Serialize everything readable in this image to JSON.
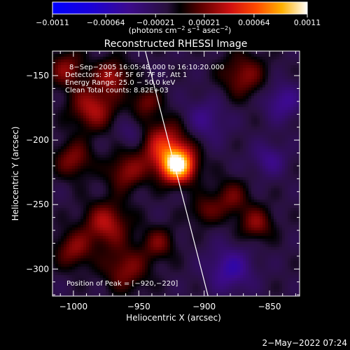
{
  "chart_data": {
    "type": "heatmap",
    "title": "Reconstructed RHESSI Image",
    "xlabel": "Heliocentric X (arcsec)",
    "ylabel": "Heliocentric Y (arcsec)",
    "xlim": [
      -1016,
      -827
    ],
    "ylim": [
      -321,
      -131
    ],
    "xticks": [
      -1000,
      -950,
      -900,
      -850
    ],
    "yticks": [
      -300,
      -250,
      -200,
      -150
    ],
    "xtick_labels": [
      "−1000",
      "−950",
      "−900",
      "−850"
    ],
    "ytick_labels": [
      "−300",
      "−250",
      "−200",
      "−150"
    ],
    "colorbar": {
      "min": -0.0011,
      "max": 0.0011,
      "ticks": [
        -0.0011,
        -0.00064,
        -0.00021,
        0.00021,
        0.00064,
        0.0011
      ],
      "tick_labels": [
        "−0.0011",
        "−0.00064",
        "−0.00021",
        "0.00021",
        "0.00064",
        "0.0011"
      ],
      "unit_label": "(photons cm",
      "unit_sup1": "−2",
      "unit_mid": " s",
      "unit_sup2": "−1",
      "unit_mid2": " asec",
      "unit_sup3": "−2",
      "unit_end": ")"
    },
    "info_lines": [
      "8−Sep−2005 16:05:48.000 to 16:10:20.000",
      "Detectors: 3F 4F 5F 6F 7F 8F, Att 1",
      "Energy Range: 25.0 − 50.0 keV",
      "Clean     Total counts: 8.82E+03"
    ],
    "peak_label": "Position of Peak = [−920,−220]",
    "peak": {
      "x": -920,
      "y": -220,
      "value": 0.0011
    },
    "sources": [
      {
        "x": -920,
        "y": -220,
        "sigma": 9,
        "amp": 1.0
      },
      {
        "x": -930,
        "y": -205,
        "sigma": 14,
        "amp": 0.55
      },
      {
        "x": -960,
        "y": -225,
        "sigma": 10,
        "amp": 0.35
      },
      {
        "x": -985,
        "y": -175,
        "sigma": 12,
        "amp": 0.45
      },
      {
        "x": -1005,
        "y": -145,
        "sigma": 10,
        "amp": 0.35
      },
      {
        "x": -970,
        "y": -150,
        "sigma": 9,
        "amp": 0.4
      },
      {
        "x": -945,
        "y": -170,
        "sigma": 8,
        "amp": 0.3
      },
      {
        "x": -1000,
        "y": -215,
        "sigma": 10,
        "amp": 0.35
      },
      {
        "x": -975,
        "y": -265,
        "sigma": 12,
        "amp": 0.45
      },
      {
        "x": -1000,
        "y": -285,
        "sigma": 10,
        "amp": 0.35
      },
      {
        "x": -960,
        "y": -300,
        "sigma": 12,
        "amp": 0.35
      },
      {
        "x": -935,
        "y": -280,
        "sigma": 9,
        "amp": 0.3
      },
      {
        "x": -870,
        "y": -150,
        "sigma": 12,
        "amp": 0.35
      },
      {
        "x": -880,
        "y": -245,
        "sigma": 10,
        "amp": 0.3
      },
      {
        "x": -860,
        "y": -265,
        "sigma": 9,
        "amp": 0.35
      },
      {
        "x": -900,
        "y": -255,
        "sigma": 8,
        "amp": 0.25
      },
      {
        "x": -850,
        "y": -215,
        "sigma": 9,
        "amp": -0.25
      },
      {
        "x": -900,
        "y": -185,
        "sigma": 12,
        "amp": -0.25
      },
      {
        "x": -880,
        "y": -300,
        "sigma": 12,
        "amp": -0.35
      },
      {
        "x": -840,
        "y": -170,
        "sigma": 10,
        "amp": -0.3
      },
      {
        "x": -955,
        "y": -195,
        "sigma": 8,
        "amp": -0.2
      }
    ],
    "limb": [
      {
        "x": -945,
        "y": -131
      },
      {
        "x": -920,
        "y": -230
      },
      {
        "x": -897,
        "y": -321
      }
    ]
  },
  "footer": {
    "timestamp": "2−May−2022 07:24"
  }
}
